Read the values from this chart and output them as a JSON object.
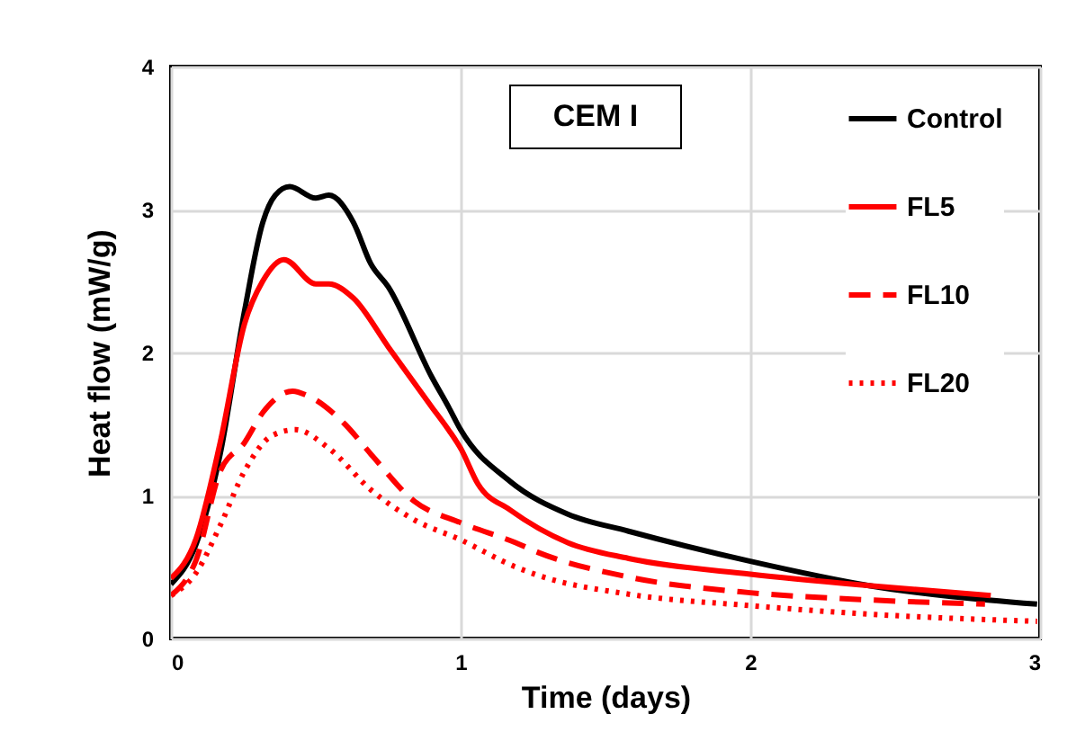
{
  "chart_data": {
    "type": "line",
    "xlabel": "Time (days)",
    "ylabel": "Heat flow (mW/g)",
    "xlim": [
      0,
      3
    ],
    "xticks": [
      0,
      1,
      2,
      3
    ],
    "ylim": [
      0,
      4
    ],
    "yticks": [
      0,
      1,
      2,
      3,
      4
    ],
    "grid": true,
    "legend": "top right",
    "annotations": [
      "CEM I"
    ],
    "series": [
      {
        "name": "Control",
        "color": "#000000",
        "line_style": "solid",
        "x": [
          0,
          0.087,
          0.17,
          0.254,
          0.317,
          0.36,
          0.41,
          0.5,
          0.545,
          0.63,
          0.69,
          0.75,
          0.9,
          0.958,
          1.0,
          1.17,
          1.37,
          1.58,
          2.0,
          2.41,
          2.99
        ],
        "values": [
          0.38,
          0.66,
          1.29,
          2.29,
          2.91,
          3.1,
          3.16,
          3.08,
          3.1,
          2.91,
          2.62,
          2.46,
          1.83,
          1.62,
          1.46,
          1.1,
          0.87,
          0.75,
          0.54,
          0.37,
          0.24
        ]
      },
      {
        "name": "FL5",
        "color": "#ff0000",
        "line_style": "solid",
        "x": [
          0,
          0.087,
          0.17,
          0.254,
          0.317,
          0.39,
          0.5,
          0.545,
          0.63,
          0.75,
          0.9,
          0.958,
          1.0,
          1.06,
          1.17,
          1.37,
          1.58,
          2.0,
          2.41,
          2.83
        ],
        "values": [
          0.42,
          0.7,
          1.37,
          2.2,
          2.5,
          2.65,
          2.48,
          2.48,
          2.38,
          2.04,
          1.62,
          1.46,
          1.33,
          1.08,
          0.9,
          0.67,
          0.56,
          0.45,
          0.37,
          0.3
        ]
      },
      {
        "name": "FL10",
        "color": "#ff0000",
        "line_style": "dashed",
        "x": [
          0,
          0.087,
          0.17,
          0.254,
          0.317,
          0.42,
          0.47,
          0.6,
          0.69,
          0.84,
          1.0,
          1.19,
          1.27,
          1.58,
          2.0,
          2.41,
          2.81
        ],
        "values": [
          0.3,
          0.55,
          1.17,
          1.37,
          1.58,
          1.73,
          1.7,
          1.5,
          1.29,
          0.96,
          0.81,
          0.67,
          0.6,
          0.43,
          0.32,
          0.27,
          0.24
        ]
      },
      {
        "name": "FL20",
        "color": "#ff0000",
        "line_style": "dotted",
        "x": [
          0,
          0.087,
          0.17,
          0.254,
          0.35,
          0.43,
          0.545,
          0.69,
          0.84,
          1.0,
          1.19,
          1.27,
          1.58,
          2.0,
          2.41,
          2.99
        ],
        "values": [
          0.3,
          0.46,
          0.79,
          1.17,
          1.42,
          1.46,
          1.33,
          1.04,
          0.83,
          0.69,
          0.5,
          0.44,
          0.31,
          0.23,
          0.17,
          0.12
        ]
      }
    ]
  }
}
